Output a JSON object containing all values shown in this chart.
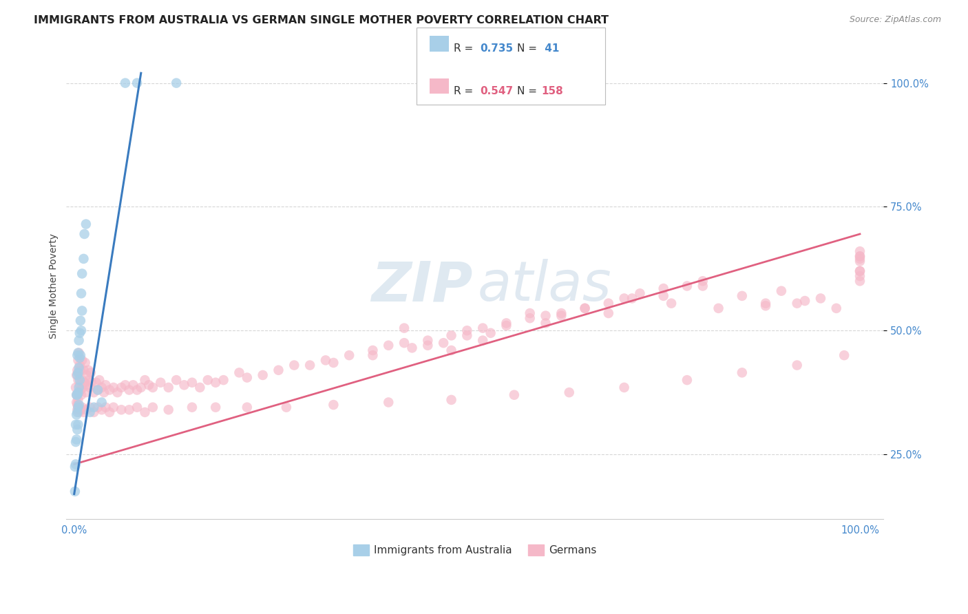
{
  "title": "IMMIGRANTS FROM AUSTRALIA VS GERMAN SINGLE MOTHER POVERTY CORRELATION CHART",
  "source": "Source: ZipAtlas.com",
  "ylabel": "Single Mother Poverty",
  "legend_label1": "Immigrants from Australia",
  "legend_label2": "Germans",
  "R1": 0.735,
  "N1": 41,
  "R2": 0.547,
  "N2": 158,
  "color_blue": "#a8cfe8",
  "color_pink": "#f5b8c8",
  "color_blue_line": "#3a7bbf",
  "color_pink_line": "#e06080",
  "color_blue_text": "#4488cc",
  "grid_color": "#cccccc",
  "background_color": "#ffffff",
  "title_fontsize": 11.5,
  "source_fontsize": 9,
  "blue_x": [
    0.001,
    0.001,
    0.002,
    0.002,
    0.002,
    0.003,
    0.003,
    0.003,
    0.004,
    0.004,
    0.004,
    0.004,
    0.004,
    0.005,
    0.005,
    0.005,
    0.005,
    0.005,
    0.006,
    0.006,
    0.006,
    0.006,
    0.007,
    0.007,
    0.007,
    0.008,
    0.008,
    0.009,
    0.009,
    0.01,
    0.01,
    0.012,
    0.013,
    0.015,
    0.02,
    0.025,
    0.03,
    0.035,
    0.065,
    0.08,
    0.13
  ],
  "blue_y": [
    0.175,
    0.225,
    0.23,
    0.275,
    0.31,
    0.28,
    0.33,
    0.37,
    0.3,
    0.335,
    0.37,
    0.41,
    0.45,
    0.31,
    0.345,
    0.375,
    0.415,
    0.455,
    0.35,
    0.385,
    0.425,
    0.48,
    0.4,
    0.445,
    0.495,
    0.45,
    0.52,
    0.5,
    0.575,
    0.54,
    0.615,
    0.645,
    0.695,
    0.715,
    0.335,
    0.345,
    0.38,
    0.355,
    1.0,
    1.0,
    1.0
  ],
  "pink_x": [
    0.002,
    0.003,
    0.003,
    0.004,
    0.004,
    0.005,
    0.005,
    0.005,
    0.006,
    0.006,
    0.006,
    0.007,
    0.007,
    0.008,
    0.008,
    0.009,
    0.01,
    0.01,
    0.011,
    0.012,
    0.013,
    0.014,
    0.015,
    0.016,
    0.017,
    0.018,
    0.019,
    0.02,
    0.021,
    0.022,
    0.025,
    0.028,
    0.03,
    0.032,
    0.035,
    0.038,
    0.04,
    0.045,
    0.05,
    0.055,
    0.06,
    0.065,
    0.07,
    0.075,
    0.08,
    0.085,
    0.09,
    0.095,
    0.1,
    0.11,
    0.12,
    0.13,
    0.14,
    0.15,
    0.16,
    0.17,
    0.18,
    0.19,
    0.21,
    0.22,
    0.24,
    0.26,
    0.28,
    0.3,
    0.32,
    0.35,
    0.38,
    0.4,
    0.42,
    0.45,
    0.48,
    0.5,
    0.52,
    0.55,
    0.58,
    0.6,
    0.62,
    0.65,
    0.68,
    0.7,
    0.72,
    0.75,
    0.78,
    0.8,
    0.82,
    0.85,
    0.88,
    0.9,
    0.92,
    0.95,
    0.97,
    1.0,
    1.0,
    1.0,
    1.0,
    1.0,
    1.0,
    1.0,
    1.0,
    1.0,
    0.003,
    0.004,
    0.005,
    0.006,
    0.007,
    0.008,
    0.01,
    0.012,
    0.015,
    0.02,
    0.025,
    0.03,
    0.035,
    0.04,
    0.045,
    0.05,
    0.06,
    0.07,
    0.08,
    0.09,
    0.1,
    0.12,
    0.15,
    0.18,
    0.22,
    0.27,
    0.33,
    0.4,
    0.48,
    0.56,
    0.63,
    0.7,
    0.78,
    0.85,
    0.92,
    0.98,
    0.42,
    0.58,
    0.71,
    0.62,
    0.45,
    0.5,
    0.55,
    0.65,
    0.75,
    0.8,
    0.88,
    0.93,
    0.48,
    0.52,
    0.33,
    0.38,
    0.43,
    0.47,
    0.53,
    0.6,
    0.68,
    0.76
  ],
  "pink_y": [
    0.385,
    0.37,
    0.41,
    0.35,
    0.42,
    0.36,
    0.4,
    0.44,
    0.375,
    0.415,
    0.455,
    0.39,
    0.43,
    0.38,
    0.42,
    0.37,
    0.4,
    0.44,
    0.385,
    0.42,
    0.395,
    0.435,
    0.375,
    0.41,
    0.39,
    0.42,
    0.4,
    0.385,
    0.415,
    0.395,
    0.375,
    0.395,
    0.38,
    0.4,
    0.385,
    0.375,
    0.39,
    0.38,
    0.385,
    0.375,
    0.385,
    0.39,
    0.38,
    0.39,
    0.38,
    0.385,
    0.4,
    0.39,
    0.385,
    0.395,
    0.385,
    0.4,
    0.39,
    0.395,
    0.385,
    0.4,
    0.395,
    0.4,
    0.415,
    0.405,
    0.41,
    0.42,
    0.43,
    0.43,
    0.44,
    0.45,
    0.46,
    0.47,
    0.475,
    0.48,
    0.49,
    0.5,
    0.505,
    0.515,
    0.525,
    0.53,
    0.535,
    0.545,
    0.555,
    0.565,
    0.575,
    0.585,
    0.59,
    0.6,
    0.545,
    0.57,
    0.555,
    0.58,
    0.555,
    0.565,
    0.545,
    0.6,
    0.62,
    0.64,
    0.65,
    0.66,
    0.65,
    0.645,
    0.62,
    0.61,
    0.355,
    0.34,
    0.345,
    0.335,
    0.345,
    0.34,
    0.345,
    0.335,
    0.34,
    0.345,
    0.335,
    0.345,
    0.34,
    0.345,
    0.335,
    0.345,
    0.34,
    0.34,
    0.345,
    0.335,
    0.345,
    0.34,
    0.345,
    0.345,
    0.345,
    0.345,
    0.35,
    0.355,
    0.36,
    0.37,
    0.375,
    0.385,
    0.4,
    0.415,
    0.43,
    0.45,
    0.505,
    0.535,
    0.565,
    0.53,
    0.47,
    0.49,
    0.51,
    0.545,
    0.57,
    0.59,
    0.55,
    0.56,
    0.46,
    0.48,
    0.435,
    0.45,
    0.465,
    0.475,
    0.495,
    0.515,
    0.535,
    0.555
  ],
  "blue_line_x": [
    0.0,
    0.085
  ],
  "blue_line_y": [
    0.17,
    1.02
  ],
  "pink_line_x": [
    0.0,
    1.0
  ],
  "pink_line_y": [
    0.23,
    0.695
  ],
  "xlim": [
    -0.01,
    1.03
  ],
  "ylim": [
    0.12,
    1.06
  ],
  "ytick_positions": [
    0.25,
    0.5,
    0.75,
    1.0
  ],
  "ytick_labels": [
    "25.0%",
    "50.0%",
    "75.0%",
    "100.0%"
  ],
  "xtick_positions": [
    0.0,
    1.0
  ],
  "xtick_labels": [
    "0.0%",
    "100.0%"
  ]
}
